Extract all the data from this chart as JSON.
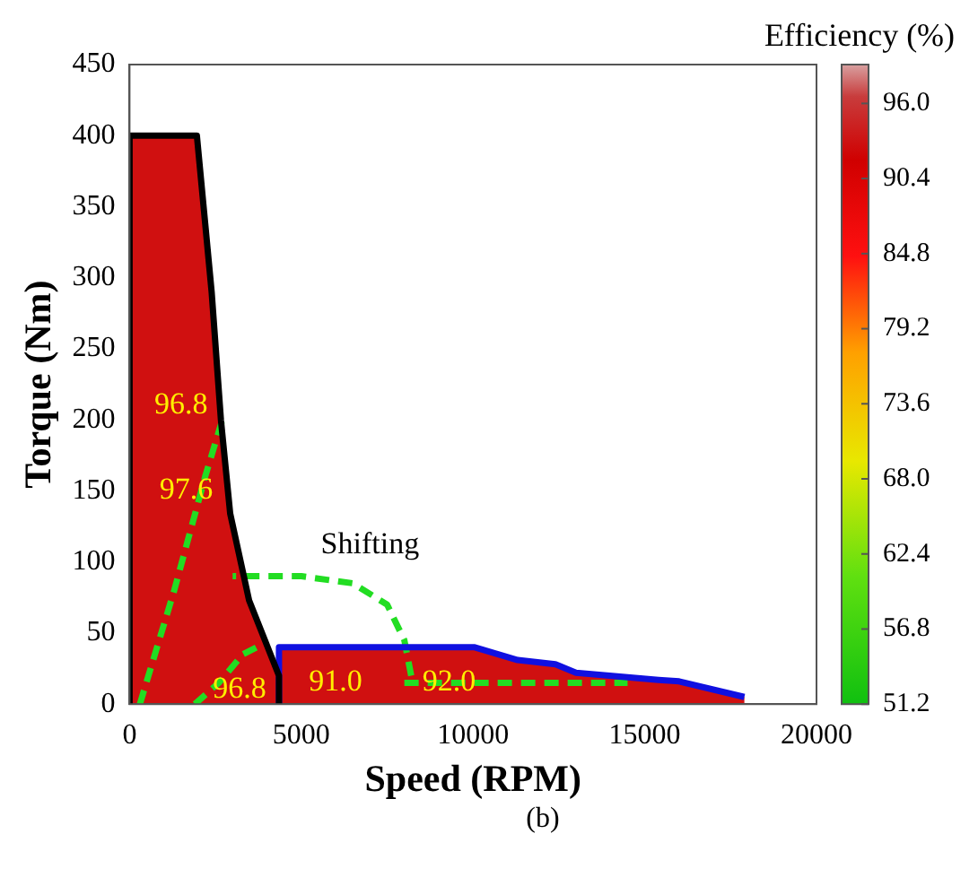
{
  "chart_data": {
    "type": "line",
    "xlabel": "Speed (RPM)",
    "ylabel": "Torque (Nm)",
    "clabel": "Efficiency (%)",
    "xlim": [
      0,
      20000
    ],
    "xticks": [
      0,
      5000,
      10000,
      15000,
      20000
    ],
    "ylim": [
      0,
      450
    ],
    "yticks": [
      0,
      50,
      100,
      150,
      200,
      250,
      300,
      350,
      400,
      450
    ],
    "clim": [
      51.2,
      98.9
    ],
    "cticks": [
      51.2,
      56.8,
      62.4,
      {
        "value": 68,
        "label": "68.0"
      },
      73.6,
      79.2,
      84.8,
      90.4,
      {
        "value": 96,
        "label": "96.0"
      }
    ],
    "grid": false,
    "legend": false,
    "marker": "none",
    "series": [
      {
        "type": "line",
        "color": "#000000",
        "x": [
          0,
          0,
          1960,
          2390,
          2660,
          2930,
          3480,
          4350,
          4350
        ],
        "values": [
          0,
          400,
          400,
          290,
          200,
          134,
          73,
          20,
          0
        ]
      },
      {
        "type": "line",
        "color": "#1010e0",
        "x": [
          4350,
          4350,
          10050,
          11300,
          12400,
          13000,
          15400,
          16000,
          17900
        ],
        "values": [
          0,
          40,
          40,
          31,
          28,
          22,
          17,
          16,
          5
        ]
      },
      {
        "type": "line",
        "color": "#22dd22",
        "line_style": "dashed",
        "x": [
          300,
          1300,
          2200,
          2700
        ],
        "values": [
          0,
          80,
          160,
          200
        ]
      },
      {
        "type": "line",
        "color": "#22dd22",
        "line_style": "dashed",
        "x": [
          1900,
          2600,
          3300,
          3700
        ],
        "values": [
          0,
          15,
          35,
          40
        ]
      },
      {
        "type": "line",
        "color": "#22dd22",
        "line_style": "dashed",
        "x": [
          8200,
          8000,
          7500,
          6500,
          5000,
          3000
        ],
        "values": [
          20,
          45,
          70,
          85,
          90,
          90
        ]
      },
      {
        "type": "line",
        "color": "#22dd22",
        "line_style": "dashed",
        "x": [
          8000,
          11000,
          14500
        ],
        "values": [
          15,
          15,
          15
        ]
      }
    ],
    "annotations": [
      "Shifting",
      "96.8",
      "97.6",
      "96.8",
      "91.0",
      "92.0",
      "(b)"
    ]
  }
}
